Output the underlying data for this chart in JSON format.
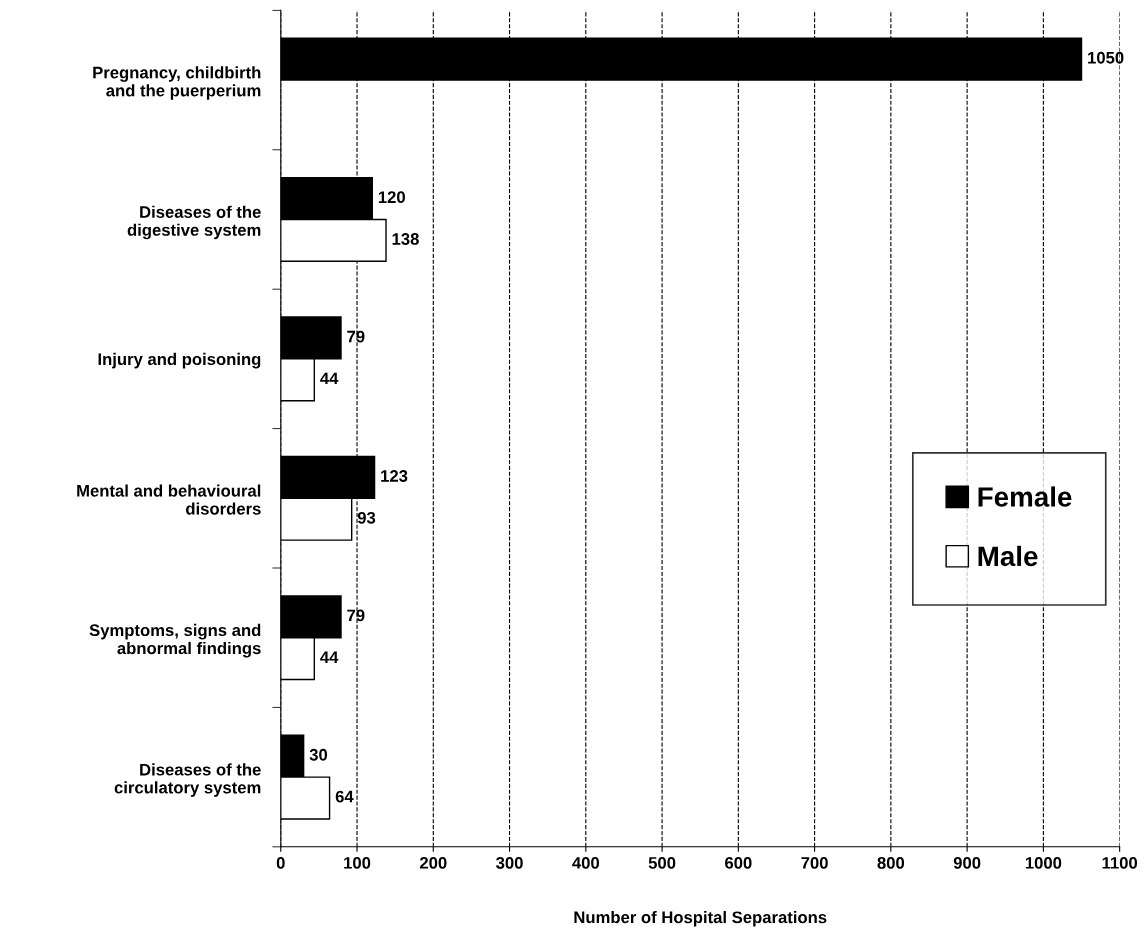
{
  "chart_data": {
    "type": "bar",
    "orientation": "horizontal",
    "xlabel": "Number of Hospital Separations",
    "categories": [
      "Pregnancy, childbirth\nand the puerperium",
      "Diseases of the\ndigestive system",
      "Injury and poisoning",
      "Mental and behavioural\ndisorders",
      "Symptoms, signs and\nabnormal findings",
      "Diseases of the\ncirculatory system"
    ],
    "series": [
      {
        "name": "Female",
        "color": "#000000",
        "values": [
          1050,
          120,
          79,
          123,
          79,
          30
        ]
      },
      {
        "name": "Male",
        "color": "#ffffff",
        "values": [
          null,
          138,
          44,
          93,
          44,
          64
        ]
      }
    ],
    "xlim": [
      0,
      1100
    ],
    "xticks": [
      0,
      100,
      200,
      300,
      400,
      500,
      600,
      700,
      800,
      900,
      1000,
      1100
    ],
    "grid": "x",
    "legend": "right",
    "data_labels": true
  }
}
